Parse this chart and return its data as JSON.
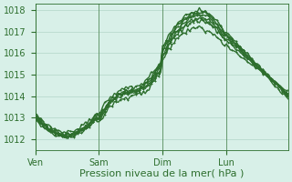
{
  "background_color": "#d8f0e8",
  "grid_color": "#a8cfc0",
  "line_color": "#2d6e2d",
  "marker_color": "#2d6e2d",
  "xlabel": "Pression niveau de la mer( hPa )",
  "ylim": [
    1011.5,
    1018.3
  ],
  "yticks": [
    1012,
    1013,
    1014,
    1015,
    1016,
    1017,
    1018
  ],
  "xtick_labels": [
    "Ven",
    "Sam",
    "Dim",
    "Lun"
  ],
  "xtick_positions": [
    0,
    33,
    66,
    99
  ],
  "total_points": 132,
  "marker_size": 2.0,
  "line_width": 1.0,
  "xlabel_fontsize": 8,
  "tick_fontsize": 7
}
